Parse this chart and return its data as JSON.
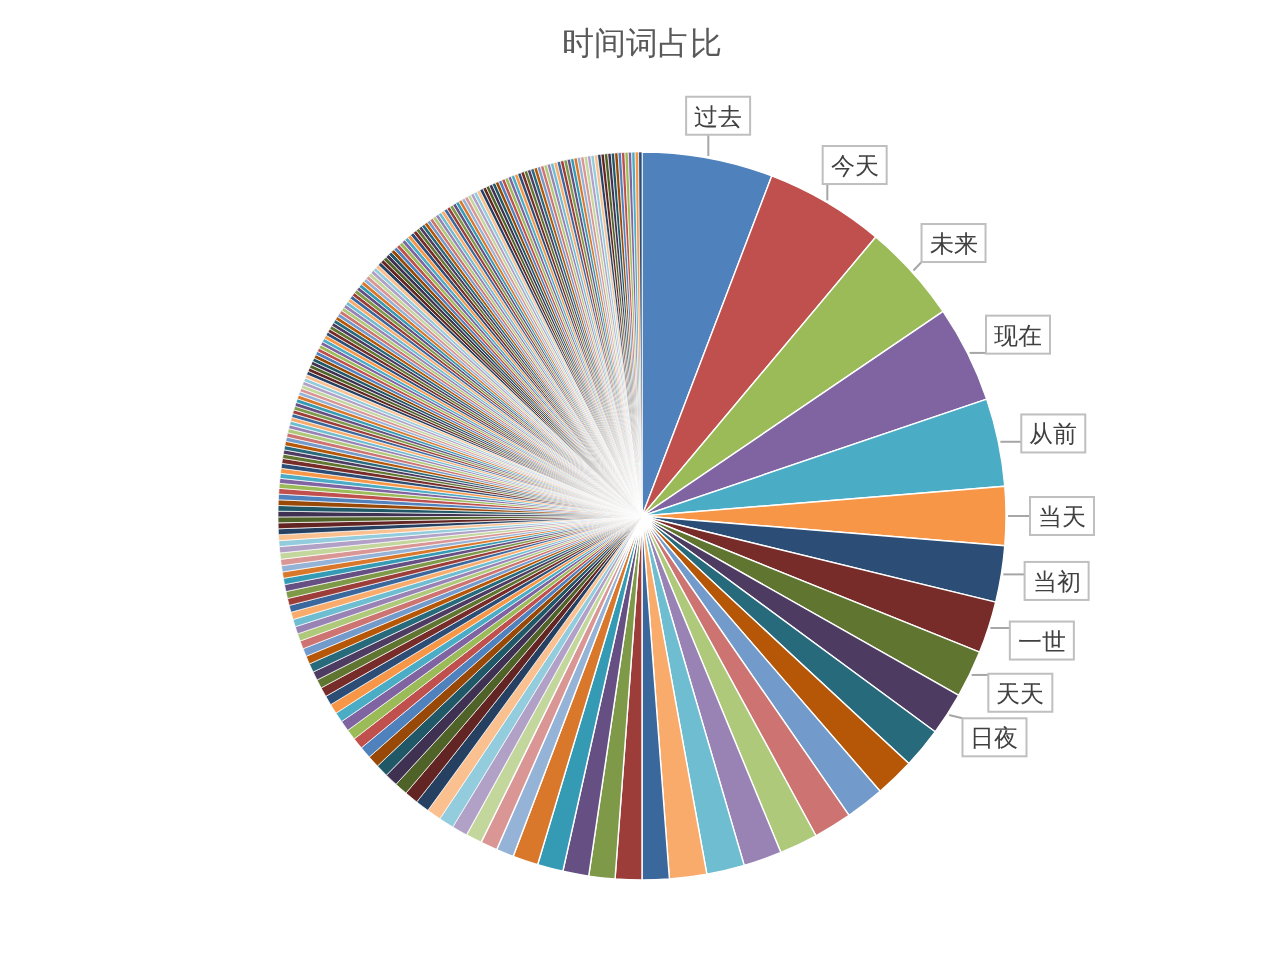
{
  "chart_data": {
    "type": "pie",
    "title": "时间词占比",
    "categories": [
      "过去",
      "今天",
      "未来",
      "现在",
      "从前",
      "当天",
      "当初",
      "一世",
      "天天",
      "日夜",
      null,
      null,
      null,
      null,
      null,
      null,
      null,
      null,
      null,
      null,
      null,
      null,
      null,
      null,
      null,
      null,
      null,
      null,
      null,
      null,
      null,
      null,
      null,
      null,
      null,
      null,
      null,
      null,
      null,
      null,
      null,
      null,
      null,
      null,
      null,
      null,
      null,
      null,
      null,
      null,
      null,
      null,
      null,
      null,
      null,
      null,
      null,
      null,
      null,
      null,
      null,
      null,
      null,
      null,
      null,
      null,
      null,
      null,
      null,
      null,
      null,
      null,
      null,
      null,
      null,
      null,
      null,
      null,
      null,
      null,
      null,
      null,
      null,
      null,
      null,
      null,
      null,
      null,
      null,
      null,
      null,
      null,
      null,
      null,
      null,
      null,
      null,
      null,
      null,
      null,
      null,
      null,
      null,
      null,
      null,
      null,
      null,
      null,
      null,
      null,
      null,
      null,
      null,
      null,
      null,
      null,
      null,
      null,
      null,
      null,
      null,
      null,
      null,
      null,
      null,
      null,
      null,
      null,
      null,
      null,
      null,
      null,
      null,
      null,
      null,
      null,
      null,
      null,
      null,
      null,
      null,
      null,
      null,
      null,
      null,
      null,
      null,
      null,
      null,
      null,
      null,
      null,
      null,
      null,
      null,
      null,
      null,
      null,
      null,
      null,
      null,
      null,
      null,
      null,
      null,
      null,
      null,
      null,
      null,
      null,
      null,
      null,
      null,
      null,
      null,
      null,
      null,
      null,
      null,
      null,
      null,
      null,
      null,
      null,
      null,
      null,
      null,
      null,
      null,
      null,
      null,
      null,
      null,
      null,
      null,
      null,
      null,
      null,
      null,
      null,
      null,
      null,
      null,
      null,
      null,
      null,
      null,
      null,
      null,
      null,
      null,
      null,
      null,
      null,
      null,
      null,
      null,
      null,
      null,
      null,
      null,
      null,
      null
    ],
    "values": [
      5.8,
      5.3,
      4.4,
      4.3,
      3.9,
      2.6,
      2.5,
      2.3,
      2.1,
      1.9,
      1.8,
      1.75,
      1.72,
      1.7,
      1.7,
      1.7,
      1.68,
      1.65,
      1.2,
      1.18,
      1.16,
      1.15,
      1.14,
      1.13,
      0.78,
      0.75,
      0.72,
      0.69,
      0.67,
      0.64,
      0.61,
      0.61,
      0.58,
      0.58,
      0.56,
      0.53,
      0.53,
      0.5,
      0.47,
      0.47,
      0.44,
      0.44,
      0.42,
      0.42,
      0.39,
      0.39,
      0.39,
      0.36,
      0.36,
      0.36,
      0.33,
      0.33,
      0.33,
      0.33,
      0.31,
      0.31,
      0.31,
      0.31,
      0.28,
      0.28,
      0.28,
      0.28,
      0.28,
      0.28,
      0.26,
      0.26,
      0.26,
      0.26,
      0.26,
      0.25,
      0.25,
      0.25,
      0.25,
      0.25,
      0.22,
      0.22,
      0.22,
      0.22,
      0.22,
      0.22,
      0.19,
      0.19,
      0.19,
      0.19,
      0.19,
      0.19,
      0.19,
      0.17,
      0.17,
      0.17,
      0.17,
      0.17,
      0.17,
      0.17,
      0.17,
      0.17,
      0.16,
      0.16,
      0.16,
      0.16,
      0.16,
      0.16,
      0.16,
      0.16,
      0.16,
      0.16,
      0.16,
      0.16,
      0.16,
      0.16,
      0.16,
      0.16,
      0.16,
      0.16,
      0.16,
      0.16,
      0.16,
      0.16,
      0.16,
      0.16,
      0.16,
      0.16,
      0.16,
      0.16,
      0.16,
      0.16,
      0.16,
      0.16,
      0.16,
      0.16,
      0.16,
      0.16,
      0.16,
      0.16,
      0.16,
      0.16,
      0.16,
      0.16,
      0.16,
      0.16,
      0.16,
      0.16,
      0.16,
      0.16,
      0.16,
      0.16,
      0.16,
      0.16,
      0.16,
      0.16,
      0.16,
      0.16,
      0.15,
      0.15,
      0.15,
      0.15,
      0.15,
      0.15,
      0.15,
      0.15,
      0.15,
      0.15,
      0.15,
      0.15,
      0.15,
      0.15,
      0.15,
      0.15,
      0.15,
      0.15,
      0.15,
      0.15,
      0.15,
      0.15,
      0.15,
      0.15,
      0.15,
      0.15,
      0.15,
      0.15,
      0.15,
      0.15,
      0.15,
      0.15,
      0.15,
      0.15,
      0.15,
      0.15,
      0.15,
      0.15,
      0.15,
      0.15,
      0.15,
      0.15,
      0.15,
      0.15,
      0.15,
      0.15,
      0.15,
      0.15,
      0.15,
      0.15,
      0.15,
      0.15,
      0.15,
      0.15,
      0.15,
      0.15,
      0.15,
      0.15,
      0.15,
      0.15,
      0.15,
      0.15,
      0.15,
      0.15,
      0.15,
      0.15,
      0.15,
      0.15,
      0.15,
      0.15,
      0.15
    ],
    "colors": [
      "#4f81bd",
      "#c0504d",
      "#9bbb59",
      "#8064a2",
      "#4bacc6",
      "#f79646",
      "#2c4d75",
      "#772c2a",
      "#5f7530",
      "#4d3b62",
      "#276a7c",
      "#b65708",
      "#729aca",
      "#cd7371",
      "#afc97a",
      "#9983b5",
      "#6fbdd1",
      "#f9ab6b",
      "#3a679c",
      "#9c3d3a",
      "#7e9a48",
      "#664f83",
      "#359ab3",
      "#d9772a",
      "#95b3d7",
      "#d99694",
      "#c3d69b",
      "#b2a1c7",
      "#93cddd",
      "#fac090",
      "#254061",
      "#632523",
      "#4f6228",
      "#3f3151",
      "#205867",
      "#984807",
      "#4f81bd",
      "#c0504d",
      "#9bbb59",
      "#8064a2",
      "#4bacc6",
      "#f79646",
      "#2c4d75",
      "#772c2a",
      "#5f7530",
      "#4d3b62",
      "#276a7c",
      "#b65708",
      "#729aca",
      "#cd7371",
      "#afc97a",
      "#9983b5",
      "#6fbdd1",
      "#f9ab6b",
      "#3a679c",
      "#9c3d3a",
      "#7e9a48",
      "#664f83",
      "#359ab3",
      "#d9772a",
      "#95b3d7",
      "#d99694",
      "#c3d69b",
      "#b2a1c7",
      "#93cddd",
      "#fac090",
      "#254061",
      "#632523",
      "#4f6228",
      "#3f3151",
      "#205867",
      "#984807",
      "#4f81bd",
      "#c0504d",
      "#9bbb59",
      "#8064a2",
      "#4bacc6",
      "#f79646",
      "#2c4d75",
      "#772c2a",
      "#5f7530",
      "#4d3b62",
      "#276a7c",
      "#b65708",
      "#729aca",
      "#cd7371",
      "#afc97a",
      "#9983b5",
      "#6fbdd1",
      "#f9ab6b",
      "#3a679c",
      "#9c3d3a",
      "#7e9a48",
      "#664f83",
      "#359ab3",
      "#d9772a",
      "#95b3d7",
      "#d99694",
      "#c3d69b",
      "#b2a1c7",
      "#93cddd",
      "#fac090",
      "#254061",
      "#632523",
      "#4f6228",
      "#3f3151",
      "#205867",
      "#984807",
      "#4f81bd",
      "#c0504d",
      "#9bbb59",
      "#8064a2",
      "#4bacc6",
      "#f79646",
      "#2c4d75",
      "#772c2a",
      "#5f7530",
      "#4d3b62",
      "#276a7c",
      "#b65708",
      "#729aca",
      "#cd7371",
      "#afc97a",
      "#9983b5",
      "#6fbdd1",
      "#f9ab6b",
      "#3a679c",
      "#9c3d3a",
      "#7e9a48",
      "#664f83",
      "#359ab3",
      "#d9772a",
      "#95b3d7",
      "#d99694",
      "#c3d69b",
      "#b2a1c7",
      "#93cddd",
      "#fac090",
      "#254061",
      "#632523",
      "#4f6228",
      "#3f3151",
      "#205867",
      "#984807",
      "#4f81bd",
      "#c0504d",
      "#9bbb59",
      "#8064a2",
      "#4bacc6",
      "#f79646",
      "#2c4d75",
      "#772c2a",
      "#5f7530",
      "#4d3b62",
      "#276a7c",
      "#b65708",
      "#729aca",
      "#cd7371",
      "#afc97a",
      "#9983b5",
      "#6fbdd1",
      "#f9ab6b",
      "#3a679c",
      "#9c3d3a",
      "#7e9a48",
      "#664f83",
      "#359ab3",
      "#d9772a",
      "#95b3d7",
      "#d99694",
      "#c3d69b",
      "#b2a1c7",
      "#93cddd",
      "#fac090",
      "#254061",
      "#632523",
      "#4f6228",
      "#3f3151",
      "#205867",
      "#984807",
      "#4f81bd",
      "#c0504d",
      "#9bbb59",
      "#8064a2",
      "#4bacc6",
      "#f79646",
      "#2c4d75",
      "#772c2a",
      "#5f7530",
      "#4d3b62",
      "#276a7c",
      "#b65708",
      "#729aca",
      "#cd7371",
      "#afc97a",
      "#9983b5",
      "#6fbdd1",
      "#f9ab6b",
      "#3a679c",
      "#9c3d3a",
      "#7e9a48",
      "#664f83",
      "#359ab3",
      "#d9772a",
      "#95b3d7",
      "#d99694",
      "#c3d69b",
      "#b2a1c7",
      "#93cddd",
      "#fac090",
      "#254061",
      "#632523",
      "#4f6228",
      "#3f3151",
      "#205867",
      "#984807",
      "#4f81bd",
      "#c0504d",
      "#9bbb59",
      "#8064a2",
      "#4bacc6",
      "#f79646",
      "#2c4d75"
    ]
  }
}
